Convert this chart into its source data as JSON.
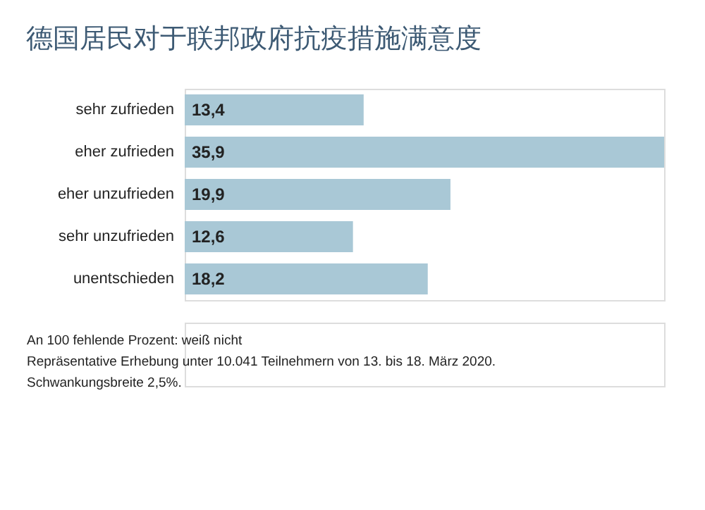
{
  "chart_data": {
    "type": "bar",
    "orientation": "horizontal",
    "title": "德国居民对于联邦政府抗疫措施满意度",
    "categories": [
      "sehr zufrieden",
      "eher zufrieden",
      "eher unzufrieden",
      "sehr unzufrieden",
      "unentschieden"
    ],
    "values": [
      13.4,
      35.9,
      19.9,
      12.6,
      18.2
    ],
    "value_labels": [
      "13,4",
      "35,9",
      "19,9",
      "12,6",
      "18,2"
    ],
    "color": "#a9c8d6",
    "annotations": [
      "An 100 fehlende Prozent: weiß nicht",
      "Repräsentative Erhebung unter 10.041 Teilnehmern von 13. bis 18. März 2020.",
      "Schwankungsbreite 2,5%."
    ]
  }
}
